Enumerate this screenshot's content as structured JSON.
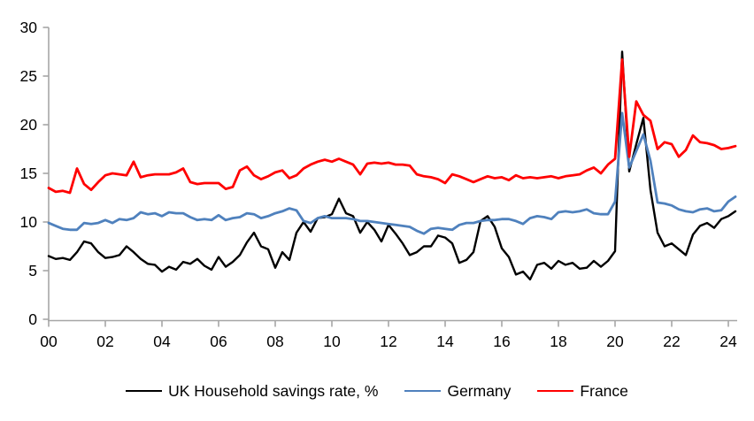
{
  "chart_data": {
    "type": "line",
    "title": "",
    "x_unit": "quarter",
    "x_start_year": 2000,
    "x_step_years": 0.25,
    "x_tick_labels": [
      "00",
      "02",
      "04",
      "06",
      "08",
      "10",
      "12",
      "14",
      "16",
      "18",
      "20",
      "22",
      "24"
    ],
    "y_ticks": [
      0,
      5,
      10,
      15,
      20,
      25,
      30
    ],
    "ylim": [
      0,
      30
    ],
    "xlim_years": [
      2000,
      2024.25
    ],
    "grid": false,
    "legend_position": "bottom",
    "axis_color": "#a6a6a6",
    "series": [
      {
        "name": "UK Household savings rate, %",
        "color": "#000000",
        "width": 2.4,
        "values": [
          6.5,
          6.2,
          6.3,
          6.1,
          6.9,
          8.0,
          7.8,
          6.9,
          6.3,
          6.4,
          6.6,
          7.5,
          6.9,
          6.2,
          5.7,
          5.6,
          4.9,
          5.4,
          5.1,
          5.9,
          5.7,
          6.2,
          5.5,
          5.1,
          6.4,
          5.4,
          5.9,
          6.6,
          7.9,
          8.9,
          7.5,
          7.2,
          5.3,
          6.9,
          6.1,
          8.9,
          10.0,
          9.0,
          10.4,
          10.5,
          10.8,
          12.4,
          10.9,
          10.6,
          8.9,
          10.0,
          9.2,
          8.0,
          9.7,
          8.8,
          7.8,
          6.6,
          6.9,
          7.5,
          7.5,
          8.6,
          8.4,
          7.8,
          5.8,
          6.1,
          6.9,
          10.1,
          10.6,
          9.5,
          7.3,
          6.4,
          4.6,
          4.9,
          4.1,
          5.6,
          5.8,
          5.2,
          6.0,
          5.6,
          5.8,
          5.2,
          5.3,
          6.0,
          5.4,
          6.0,
          7.0,
          27.5,
          15.2,
          18.0,
          20.7,
          13.3,
          8.9,
          7.5,
          7.8,
          7.2,
          6.6,
          8.7,
          9.6,
          9.9,
          9.4,
          10.3,
          10.6,
          11.1
        ]
      },
      {
        "name": "Germany",
        "color": "#4f81bd",
        "width": 2.8,
        "values": [
          9.9,
          9.6,
          9.3,
          9.2,
          9.2,
          9.9,
          9.8,
          9.9,
          10.2,
          9.9,
          10.3,
          10.2,
          10.4,
          11.0,
          10.8,
          10.9,
          10.6,
          11.0,
          10.9,
          10.9,
          10.5,
          10.2,
          10.3,
          10.2,
          10.7,
          10.2,
          10.4,
          10.5,
          10.9,
          10.8,
          10.4,
          10.6,
          10.9,
          11.1,
          11.4,
          11.2,
          10.1,
          9.9,
          10.4,
          10.6,
          10.4,
          10.4,
          10.4,
          10.3,
          10.1,
          10.1,
          10.0,
          9.9,
          9.8,
          9.7,
          9.6,
          9.5,
          9.1,
          8.8,
          9.3,
          9.4,
          9.3,
          9.2,
          9.7,
          9.9,
          9.9,
          10.1,
          10.2,
          10.2,
          10.3,
          10.3,
          10.1,
          9.8,
          10.4,
          10.6,
          10.5,
          10.3,
          11.0,
          11.1,
          11.0,
          11.1,
          11.3,
          10.9,
          10.8,
          10.8,
          12.1,
          21.2,
          15.6,
          17.3,
          19.0,
          16.3,
          12.0,
          11.9,
          11.7,
          11.3,
          11.1,
          11.0,
          11.3,
          11.4,
          11.1,
          11.2,
          12.1,
          12.6
        ]
      },
      {
        "name": "France",
        "color": "#ff0000",
        "width": 2.8,
        "values": [
          13.5,
          13.1,
          13.2,
          13.0,
          15.5,
          13.9,
          13.3,
          14.1,
          14.8,
          15.0,
          14.9,
          14.8,
          16.2,
          14.6,
          14.8,
          14.9,
          14.9,
          14.9,
          15.1,
          15.5,
          14.1,
          13.9,
          14.0,
          14.0,
          14.0,
          13.4,
          13.6,
          15.3,
          15.7,
          14.8,
          14.4,
          14.7,
          15.1,
          15.3,
          14.5,
          14.8,
          15.5,
          15.9,
          16.2,
          16.4,
          16.2,
          16.5,
          16.2,
          15.9,
          14.9,
          16.0,
          16.1,
          16.0,
          16.1,
          15.9,
          15.9,
          15.8,
          14.9,
          14.7,
          14.6,
          14.4,
          14.0,
          14.9,
          14.7,
          14.4,
          14.1,
          14.4,
          14.7,
          14.5,
          14.6,
          14.3,
          14.8,
          14.5,
          14.6,
          14.5,
          14.6,
          14.7,
          14.5,
          14.7,
          14.8,
          14.9,
          15.3,
          15.6,
          15.0,
          15.9,
          16.5,
          26.7,
          16.7,
          22.4,
          21.0,
          20.4,
          17.5,
          18.2,
          18.0,
          16.7,
          17.4,
          18.9,
          18.2,
          18.1,
          17.9,
          17.5,
          17.6,
          17.8
        ]
      }
    ]
  }
}
